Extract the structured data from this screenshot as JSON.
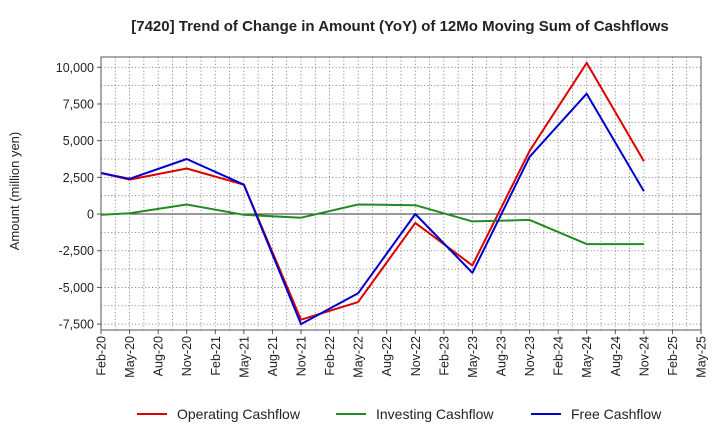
{
  "chart_data": {
    "type": "line",
    "title": "[7420]  Trend of Change in Amount (YoY) of 12Mo Moving Sum of Cashflows",
    "xlabel": "",
    "ylabel": "Amount (million yen)",
    "ylim": [
      -7900,
      10700
    ],
    "yticks": [
      10000,
      7500,
      5000,
      2500,
      0,
      -2500,
      -5000,
      -7500
    ],
    "ytick_labels": [
      "10,000",
      "7,500",
      "5,000",
      "2,500",
      "0",
      "-2,500",
      "-5,000",
      "-7,500"
    ],
    "categories": [
      "Feb-20",
      "May-20",
      "Aug-20",
      "Nov-20",
      "Feb-21",
      "May-21",
      "Aug-21",
      "Nov-21",
      "Feb-22",
      "May-22",
      "Aug-22",
      "Nov-22",
      "Feb-23",
      "May-23",
      "Aug-23",
      "Nov-23",
      "Feb-24",
      "May-24",
      "Aug-24",
      "Nov-24",
      "Feb-25",
      "May-25"
    ],
    "grid": true,
    "legend_position": "bottom",
    "series": [
      {
        "name": "Operating Cashflow",
        "color": "#dd0000",
        "values": [
          2800,
          2350,
          null,
          3100,
          null,
          2000,
          null,
          -7200,
          null,
          -6000,
          null,
          -600,
          null,
          -3500,
          null,
          4300,
          null,
          10300,
          null,
          3600,
          null,
          null
        ]
      },
      {
        "name": "Investing Cashflow",
        "color": "#228b22",
        "values": [
          -50,
          50,
          null,
          650,
          null,
          -50,
          null,
          -250,
          null,
          650,
          null,
          600,
          null,
          -500,
          null,
          -400,
          null,
          -2050,
          null,
          -2050,
          null,
          null
        ]
      },
      {
        "name": "Free Cashflow",
        "color": "#0000cc",
        "values": [
          2800,
          2400,
          null,
          3750,
          null,
          2000,
          null,
          -7500,
          null,
          -5400,
          null,
          0,
          null,
          -4000,
          null,
          3900,
          null,
          8200,
          null,
          1550,
          null,
          null
        ]
      }
    ]
  }
}
